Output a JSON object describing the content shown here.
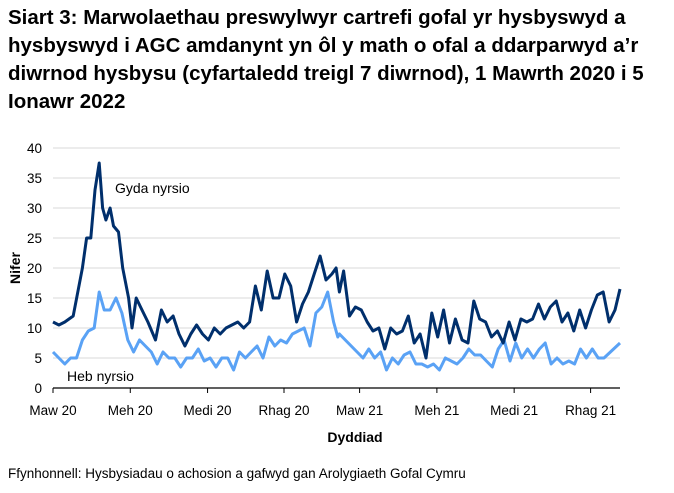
{
  "chart_data": {
    "type": "line",
    "title": "Siart 3: Marwolaethau preswylwyr cartrefi gofal yr hysbyswyd a hysbyswyd i AGC amdanynt yn ôl y math o ofal a ddarparwyd a’r diwrnod hysbysu (cyfartaledd treigl 7 diwrnod), 1 Mawrth 2020 i 5 Ionawr 2022",
    "xlabel": "Dyddiad",
    "ylabel": "Nifer",
    "ylim": [
      0,
      40
    ],
    "yticks": [
      0,
      5,
      10,
      15,
      20,
      25,
      30,
      35,
      40
    ],
    "xlim": [
      "2020-03-01",
      "2022-01-05"
    ],
    "xticks": [
      {
        "date": "2020-03-01",
        "label": "Maw 20"
      },
      {
        "date": "2020-06-01",
        "label": "Meh 20"
      },
      {
        "date": "2020-09-01",
        "label": "Medi 20"
      },
      {
        "date": "2020-12-01",
        "label": "Rhag 20"
      },
      {
        "date": "2021-03-01",
        "label": "Maw 21"
      },
      {
        "date": "2021-06-01",
        "label": "Meh 21"
      },
      {
        "date": "2021-09-01",
        "label": "Medi 21"
      },
      {
        "date": "2021-12-01",
        "label": "Rhag 21"
      }
    ],
    "grid": "horizontal",
    "legend": "none (inline labels)",
    "series": [
      {
        "name": "Gyda nyrsio",
        "color": "#002f6c",
        "x": [
          "2020-03-01",
          "2020-03-08",
          "2020-03-15",
          "2020-03-25",
          "2020-04-05",
          "2020-04-10",
          "2020-04-15",
          "2020-04-20",
          "2020-04-25",
          "2020-04-29",
          "2020-05-03",
          "2020-05-08",
          "2020-05-12",
          "2020-05-18",
          "2020-05-23",
          "2020-05-30",
          "2020-06-03",
          "2020-06-08",
          "2020-06-15",
          "2020-06-22",
          "2020-07-01",
          "2020-07-08",
          "2020-07-15",
          "2020-07-22",
          "2020-07-29",
          "2020-08-05",
          "2020-08-12",
          "2020-08-19",
          "2020-08-26",
          "2020-09-02",
          "2020-09-09",
          "2020-09-16",
          "2020-09-23",
          "2020-09-30",
          "2020-10-07",
          "2020-10-14",
          "2020-10-21",
          "2020-10-28",
          "2020-11-04",
          "2020-11-11",
          "2020-11-18",
          "2020-11-25",
          "2020-12-02",
          "2020-12-09",
          "2020-12-16",
          "2020-12-23",
          "2020-12-30",
          "2021-01-06",
          "2021-01-13",
          "2021-01-20",
          "2021-01-27",
          "2021-02-01",
          "2021-02-05",
          "2021-02-10",
          "2021-02-17",
          "2021-02-24",
          "2021-03-03",
          "2021-03-10",
          "2021-03-17",
          "2021-03-24",
          "2021-03-31",
          "2021-04-07",
          "2021-04-14",
          "2021-04-21",
          "2021-04-28",
          "2021-05-05",
          "2021-05-12",
          "2021-05-19",
          "2021-05-26",
          "2021-06-02",
          "2021-06-09",
          "2021-06-16",
          "2021-06-23",
          "2021-07-01",
          "2021-07-08",
          "2021-07-15",
          "2021-07-22",
          "2021-07-29",
          "2021-08-05",
          "2021-08-12",
          "2021-08-19",
          "2021-08-26",
          "2021-09-02",
          "2021-09-09",
          "2021-09-16",
          "2021-09-23",
          "2021-09-30",
          "2021-10-07",
          "2021-10-14",
          "2021-10-21",
          "2021-10-28",
          "2021-11-04",
          "2021-11-11",
          "2021-11-18",
          "2021-11-25",
          "2021-12-02",
          "2021-12-09",
          "2021-12-16",
          "2021-12-23",
          "2021-12-30",
          "2022-01-05"
        ],
        "values": [
          11,
          10.5,
          11,
          12,
          20,
          25,
          25,
          33,
          37.5,
          30,
          28,
          30,
          27,
          26,
          20,
          15,
          10,
          15,
          13,
          11,
          8,
          13,
          11,
          12,
          9,
          7,
          9,
          10.5,
          9,
          8,
          10,
          9,
          10,
          10.5,
          11,
          10,
          11,
          17,
          13,
          19.5,
          15,
          15,
          19,
          17,
          11,
          14,
          16,
          19,
          22,
          18,
          19,
          20,
          16,
          19.5,
          12,
          13.5,
          13,
          11,
          9.5,
          10,
          6.5,
          10,
          9,
          9.5,
          12,
          7.5,
          9,
          5,
          12.5,
          8.5,
          13,
          7.5,
          11.5,
          8,
          7.5,
          14.5,
          11.5,
          11,
          8.5,
          9.5,
          7.5,
          11,
          8,
          11.5,
          11,
          11.5,
          14,
          11.5,
          13.5,
          14.5,
          11,
          12.5,
          9.5,
          13,
          10,
          13,
          15.5,
          16,
          11,
          13,
          16.5
        ]
      },
      {
        "name": "Heb nyrsio",
        "color": "#5aa2f5",
        "x": [
          "2020-03-01",
          "2020-03-08",
          "2020-03-15",
          "2020-03-22",
          "2020-03-29",
          "2020-04-05",
          "2020-04-12",
          "2020-04-19",
          "2020-04-25",
          "2020-05-01",
          "2020-05-08",
          "2020-05-15",
          "2020-05-22",
          "2020-05-29",
          "2020-06-05",
          "2020-06-12",
          "2020-06-19",
          "2020-06-26",
          "2020-07-03",
          "2020-07-10",
          "2020-07-17",
          "2020-07-24",
          "2020-07-31",
          "2020-08-07",
          "2020-08-14",
          "2020-08-21",
          "2020-08-28",
          "2020-09-04",
          "2020-09-11",
          "2020-09-18",
          "2020-09-25",
          "2020-10-02",
          "2020-10-09",
          "2020-10-16",
          "2020-10-23",
          "2020-10-30",
          "2020-11-06",
          "2020-11-13",
          "2020-11-20",
          "2020-11-27",
          "2020-12-04",
          "2020-12-11",
          "2020-12-18",
          "2020-12-25",
          "2021-01-01",
          "2021-01-08",
          "2021-01-15",
          "2021-01-22",
          "2021-01-29",
          "2021-02-03",
          "2021-02-05",
          "2021-02-12",
          "2021-02-19",
          "2021-02-26",
          "2021-03-05",
          "2021-03-12",
          "2021-03-19",
          "2021-03-26",
          "2021-04-02",
          "2021-04-09",
          "2021-04-16",
          "2021-04-23",
          "2021-04-30",
          "2021-05-07",
          "2021-05-14",
          "2021-05-21",
          "2021-05-28",
          "2021-06-04",
          "2021-06-11",
          "2021-06-18",
          "2021-06-25",
          "2021-07-02",
          "2021-07-09",
          "2021-07-16",
          "2021-07-23",
          "2021-07-30",
          "2021-08-06",
          "2021-08-13",
          "2021-08-20",
          "2021-08-27",
          "2021-09-03",
          "2021-09-10",
          "2021-09-17",
          "2021-09-24",
          "2021-10-01",
          "2021-10-08",
          "2021-10-15",
          "2021-10-22",
          "2021-10-29",
          "2021-11-05",
          "2021-11-12",
          "2021-11-19",
          "2021-11-26",
          "2021-12-03",
          "2021-12-10",
          "2021-12-17",
          "2022-01-05"
        ],
        "values": [
          6,
          5,
          4,
          5,
          5,
          8,
          9.5,
          10,
          16,
          13,
          13,
          15,
          12.5,
          8,
          6,
          8,
          7,
          6,
          4,
          6,
          5,
          5,
          3.5,
          5,
          5,
          6.5,
          4.5,
          5,
          3.5,
          5,
          5,
          3,
          6,
          5,
          6,
          7,
          5,
          8.5,
          7,
          8,
          7.5,
          9,
          9.5,
          10,
          7,
          12.5,
          13.5,
          16,
          11,
          8.5,
          9,
          8,
          7,
          6,
          5,
          6.5,
          5,
          6,
          3,
          5,
          4,
          5.5,
          6,
          4,
          4,
          3.5,
          4,
          3,
          5,
          4.5,
          4,
          5,
          6.5,
          5.5,
          5.5,
          4.5,
          3.5,
          6.5,
          8,
          4.5,
          7.5,
          5,
          6.5,
          5,
          6.5,
          7.5,
          4,
          5,
          4,
          4.5,
          4,
          6.5,
          5,
          6.5,
          5,
          5,
          7.5
        ]
      }
    ],
    "annotations": [
      {
        "text": "Gyda nyrsio",
        "series": "Gyda nyrsio"
      },
      {
        "text": "Heb nyrsio",
        "series": "Heb nyrsio"
      }
    ]
  },
  "source": "Ffynhonnell: Hysbysiadau o achosion a gafwyd gan Arolygiaeth Gofal Cymru"
}
